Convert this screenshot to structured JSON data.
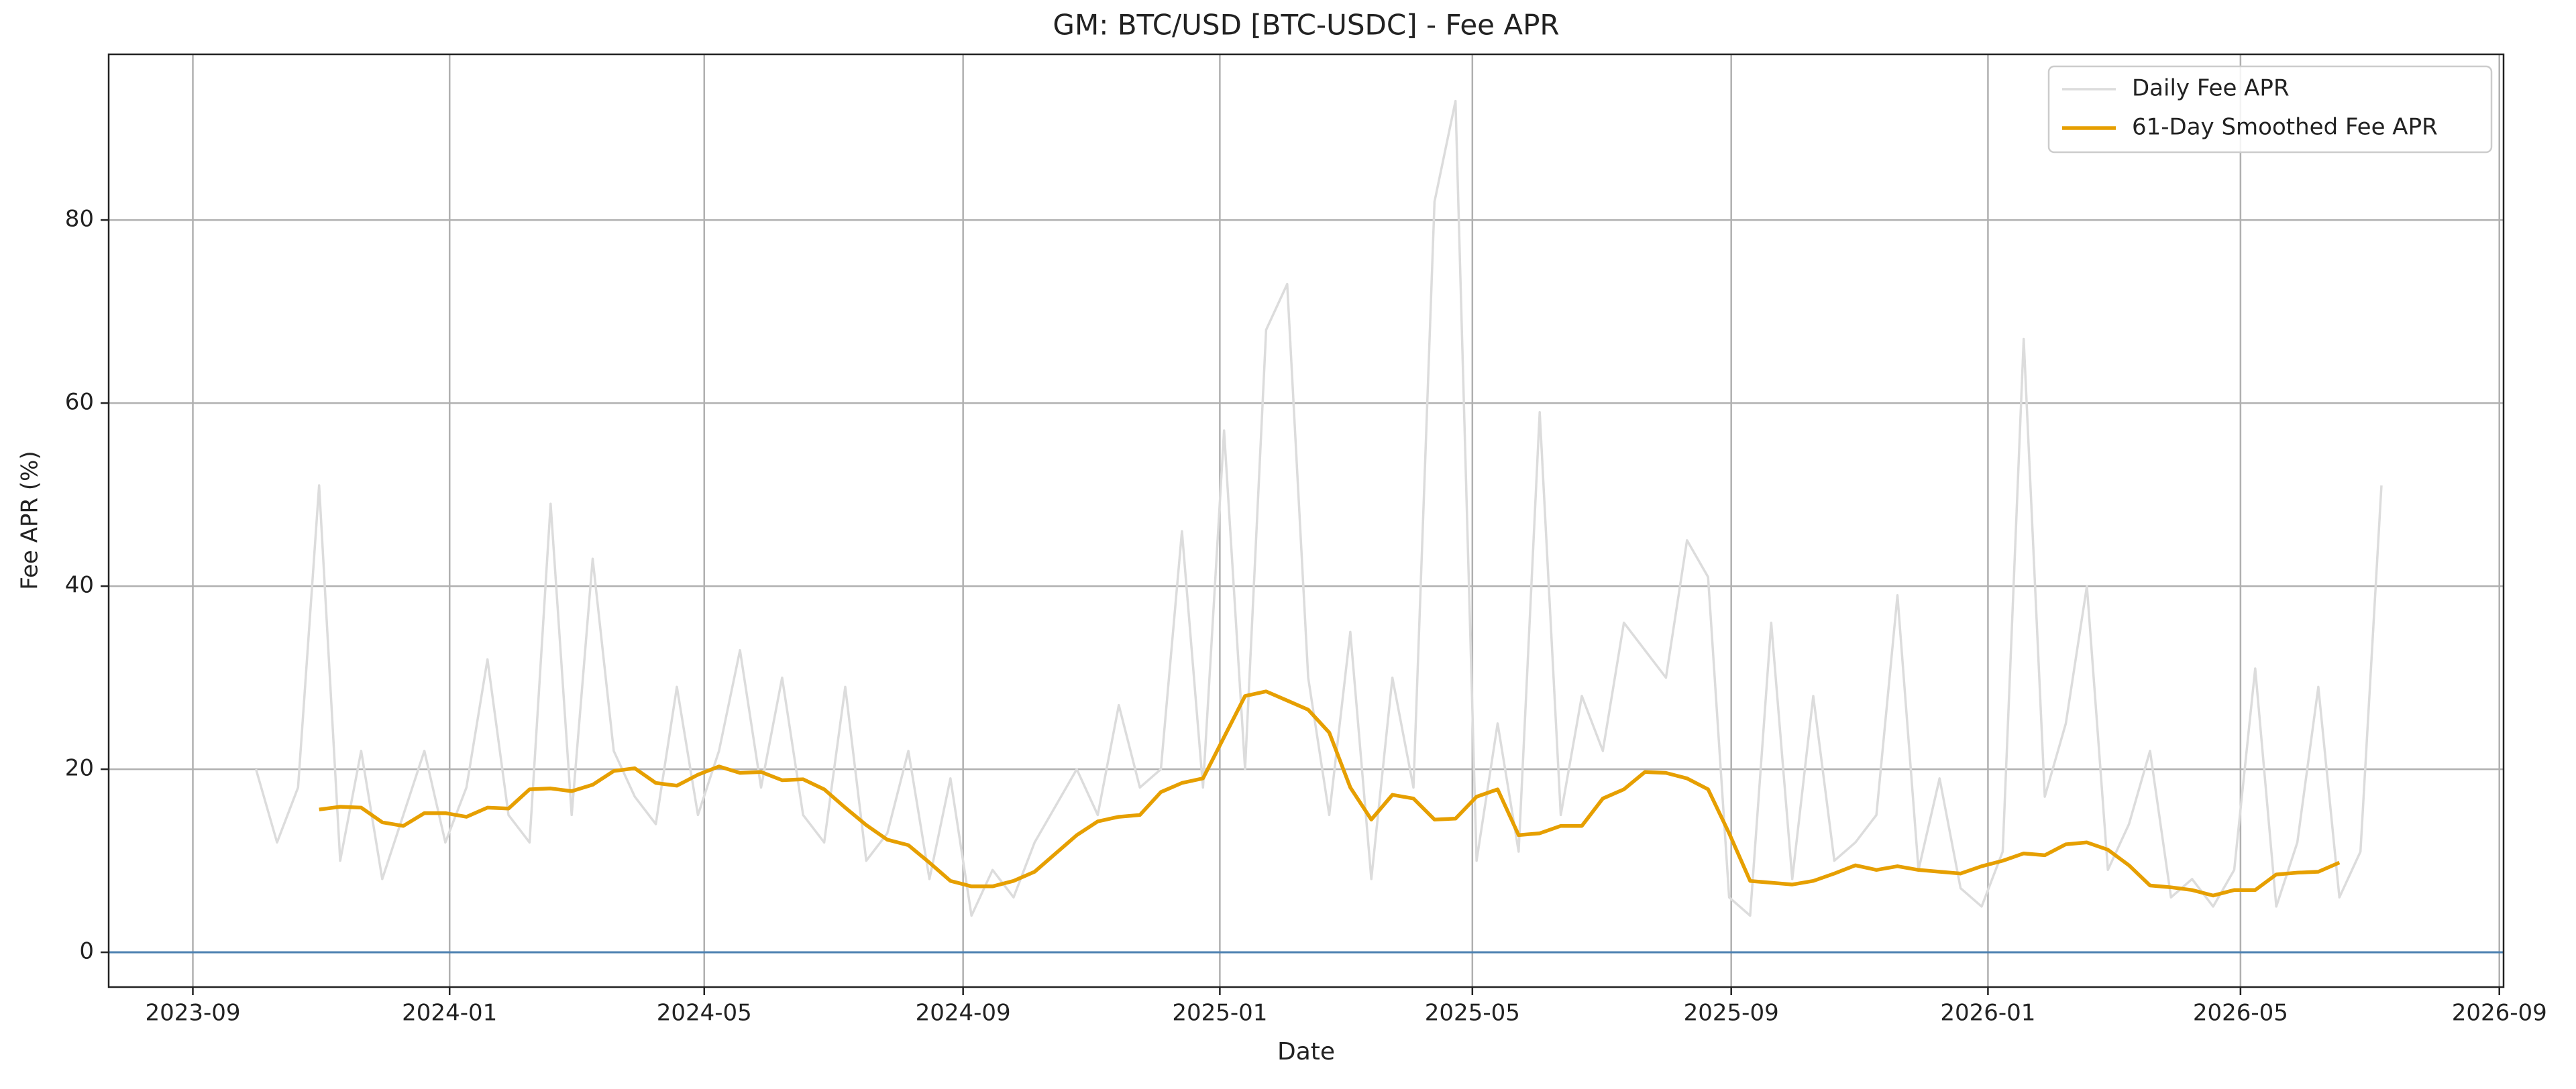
{
  "chart_data": {
    "type": "line",
    "title": "GM: BTC/USD [BTC-USDC] - Fee APR",
    "xlabel": "Date",
    "ylabel": "Fee APR (%)",
    "x": [
      "2023-10-01",
      "2023-10-11",
      "2023-10-21",
      "2023-10-31",
      "2023-11-10",
      "2023-11-20",
      "2023-11-30",
      "2023-12-10",
      "2023-12-20",
      "2023-12-30",
      "2024-01-09",
      "2024-01-19",
      "2024-01-29",
      "2024-02-08",
      "2024-02-18",
      "2024-02-28",
      "2024-03-09",
      "2024-03-19",
      "2024-03-29",
      "2024-04-08",
      "2024-04-18",
      "2024-04-28",
      "2024-05-08",
      "2024-05-18",
      "2024-05-28",
      "2024-06-07",
      "2024-06-17",
      "2024-06-27",
      "2024-07-07",
      "2024-07-17",
      "2024-07-27",
      "2024-08-06",
      "2024-08-16",
      "2024-08-26",
      "2024-09-05",
      "2024-09-15",
      "2024-09-25",
      "2024-10-05",
      "2024-10-15",
      "2024-10-25",
      "2024-11-04",
      "2024-11-14",
      "2024-11-24",
      "2024-12-04",
      "2024-12-14",
      "2024-12-24",
      "2025-01-03",
      "2025-01-13",
      "2025-01-23",
      "2025-02-02",
      "2025-02-12",
      "2025-02-22",
      "2025-03-04",
      "2025-03-14",
      "2025-03-24",
      "2025-04-03",
      "2025-04-13",
      "2025-04-23",
      "2025-05-03",
      "2025-05-13",
      "2025-05-23",
      "2025-06-02",
      "2025-06-12",
      "2025-06-22",
      "2025-07-02",
      "2025-07-12",
      "2025-07-22",
      "2025-08-01",
      "2025-08-11",
      "2025-08-21",
      "2025-08-31",
      "2025-09-10",
      "2025-09-20",
      "2025-09-30",
      "2025-10-10",
      "2025-10-20",
      "2025-10-30",
      "2025-11-09",
      "2025-11-19",
      "2025-11-29",
      "2025-12-09",
      "2025-12-19",
      "2025-12-29",
      "2026-01-08",
      "2026-01-18",
      "2026-01-28",
      "2026-02-07",
      "2026-02-17",
      "2026-02-27",
      "2026-03-09",
      "2026-03-19",
      "2026-03-29",
      "2026-04-08",
      "2026-04-18",
      "2026-04-28",
      "2026-05-08",
      "2026-05-18",
      "2026-05-28",
      "2026-06-07",
      "2026-06-17",
      "2026-06-27",
      "2026-07-07"
    ],
    "series": [
      {
        "name": "Daily Fee APR",
        "color": "#dcdcdc",
        "width": 3.5,
        "values": [
          20,
          12,
          18,
          51,
          10,
          22,
          8,
          15,
          22,
          12,
          18,
          32,
          15,
          12,
          49,
          15,
          43,
          22,
          17,
          14,
          29,
          15,
          22,
          33,
          18,
          30,
          15,
          12,
          29,
          10,
          13,
          22,
          8,
          19,
          4,
          9,
          6,
          12,
          16,
          20,
          15,
          27,
          18,
          20,
          46,
          18,
          57,
          20,
          68,
          73,
          30,
          15,
          35,
          8,
          30,
          18,
          82,
          93,
          10,
          25,
          11,
          59,
          15,
          28,
          22,
          36,
          33,
          30,
          45,
          41,
          6,
          4,
          36,
          8,
          28,
          10,
          12,
          15,
          39,
          9,
          19,
          7,
          5,
          11,
          67,
          17,
          25,
          40,
          9,
          14,
          22,
          6,
          8,
          5,
          9,
          31,
          5,
          12,
          29,
          6,
          11,
          51
        ]
      },
      {
        "name": "61-Day Smoothed Fee APR",
        "color": "#e69f00",
        "width": 5.5,
        "values": [
          null,
          null,
          null,
          15.6,
          15.9,
          15.8,
          14.2,
          13.8,
          15.2,
          15.2,
          14.8,
          15.8,
          15.7,
          17.8,
          17.9,
          17.6,
          18.3,
          19.8,
          20.1,
          18.5,
          18.2,
          19.4,
          20.3,
          19.6,
          19.7,
          18.8,
          18.9,
          17.8,
          15.8,
          13.9,
          12.3,
          11.7,
          9.8,
          7.8,
          7.2,
          7.2,
          7.8,
          8.8,
          10.8,
          12.8,
          14.3,
          14.8,
          15.0,
          17.5,
          18.5,
          19.0,
          23.5,
          28.0,
          28.5,
          27.5,
          26.5,
          24.0,
          18.0,
          14.5,
          17.2,
          16.8,
          14.5,
          14.6,
          17.0,
          17.8,
          12.8,
          13.0,
          13.8,
          13.8,
          16.8,
          17.8,
          19.7,
          19.6,
          19.0,
          17.8,
          13.0,
          7.8,
          7.6,
          7.4,
          7.8,
          8.6,
          9.5,
          9.0,
          9.4,
          9.0,
          8.8,
          8.6,
          9.4,
          10.0,
          10.8,
          10.6,
          11.8,
          12.0,
          11.2,
          9.5,
          7.3,
          7.1,
          6.8,
          6.2,
          6.8,
          6.8,
          8.5,
          8.7,
          8.8,
          9.8,
          null,
          null
        ]
      }
    ],
    "xlim": [
      "2023-07-23",
      "2026-09-03"
    ],
    "xticks": [
      "2023-09",
      "2024-01",
      "2024-05",
      "2024-09",
      "2025-01",
      "2025-05",
      "2025-09",
      "2026-01",
      "2026-05",
      "2026-09"
    ],
    "ylim": [
      -3.8,
      98.1
    ],
    "yticks": [
      0,
      20,
      40,
      60,
      80
    ],
    "hline": 0,
    "hline_color": "#4a7fb0",
    "grid": true,
    "legend": "upper-right"
  }
}
